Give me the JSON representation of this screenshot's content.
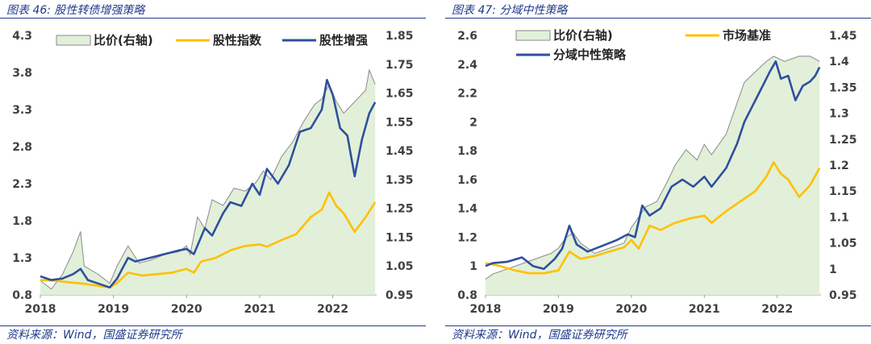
{
  "left": {
    "figure_title": "图表 46: 股性转债增强策略",
    "source": "资料来源：Wind，国盛证券研究所"
  },
  "right": {
    "figure_title": "图表 47: 分域中性策略",
    "source": "资料来源：Wind，国盛证券研究所"
  },
  "colors": {
    "ratio_fill": "#e2f0d9",
    "ratio_line": "#8a8a8a",
    "benchmark": "#ffc000",
    "strategy": "#2f4f9f",
    "frame": "#1f3a8a"
  },
  "chart_data": [
    {
      "type": "line",
      "title": "",
      "x_tick_labels": [
        "2018",
        "2019",
        "2020",
        "2021",
        "2022"
      ],
      "x_range": [
        2018.0,
        2022.6
      ],
      "left_axis": {
        "ylim": [
          0.8,
          4.3
        ],
        "ticks": [
          "0.8",
          "1.3",
          "1.8",
          "2.3",
          "2.8",
          "3.3",
          "3.8",
          "4.3"
        ]
      },
      "right_axis": {
        "ylim": [
          0.95,
          1.85
        ],
        "ticks": [
          "0.95",
          "1.05",
          "1.15",
          "1.25",
          "1.35",
          "1.45",
          "1.55",
          "1.65",
          "1.75",
          "1.85"
        ]
      },
      "legend_position": "top",
      "series": [
        {
          "name": "比价(右轴)",
          "kind": "area",
          "axis": "right",
          "color": "#8a8a8a",
          "points": [
            [
              2018.0,
              1.0
            ],
            [
              2018.15,
              0.97
            ],
            [
              2018.3,
              1.02
            ],
            [
              2018.45,
              1.1
            ],
            [
              2018.55,
              1.17
            ],
            [
              2018.6,
              1.05
            ],
            [
              2018.8,
              1.02
            ],
            [
              2018.95,
              0.99
            ],
            [
              2019.05,
              1.05
            ],
            [
              2019.2,
              1.12
            ],
            [
              2019.35,
              1.06
            ],
            [
              2019.5,
              1.07
            ],
            [
              2019.7,
              1.09
            ],
            [
              2019.9,
              1.1
            ],
            [
              2020.0,
              1.12
            ],
            [
              2020.05,
              1.09
            ],
            [
              2020.15,
              1.22
            ],
            [
              2020.25,
              1.18
            ],
            [
              2020.35,
              1.28
            ],
            [
              2020.5,
              1.26
            ],
            [
              2020.65,
              1.32
            ],
            [
              2020.8,
              1.31
            ],
            [
              2020.95,
              1.34
            ],
            [
              2021.05,
              1.38
            ],
            [
              2021.15,
              1.35
            ],
            [
              2021.3,
              1.43
            ],
            [
              2021.45,
              1.48
            ],
            [
              2021.6,
              1.55
            ],
            [
              2021.75,
              1.61
            ],
            [
              2021.85,
              1.63
            ],
            [
              2021.95,
              1.68
            ],
            [
              2022.05,
              1.62
            ],
            [
              2022.15,
              1.58
            ],
            [
              2022.3,
              1.62
            ],
            [
              2022.45,
              1.66
            ],
            [
              2022.5,
              1.73
            ],
            [
              2022.58,
              1.68
            ]
          ]
        },
        {
          "name": "股性指数",
          "kind": "line",
          "axis": "left",
          "color": "#ffc000",
          "points": [
            [
              2018.0,
              1.0
            ],
            [
              2018.2,
              0.99
            ],
            [
              2018.4,
              0.97
            ],
            [
              2018.6,
              0.95
            ],
            [
              2018.8,
              0.92
            ],
            [
              2018.95,
              0.9
            ],
            [
              2019.05,
              0.96
            ],
            [
              2019.2,
              1.1
            ],
            [
              2019.4,
              1.06
            ],
            [
              2019.6,
              1.08
            ],
            [
              2019.8,
              1.1
            ],
            [
              2020.0,
              1.15
            ],
            [
              2020.1,
              1.1
            ],
            [
              2020.2,
              1.25
            ],
            [
              2020.4,
              1.3
            ],
            [
              2020.6,
              1.4
            ],
            [
              2020.8,
              1.46
            ],
            [
              2021.0,
              1.48
            ],
            [
              2021.1,
              1.45
            ],
            [
              2021.3,
              1.54
            ],
            [
              2021.5,
              1.62
            ],
            [
              2021.7,
              1.85
            ],
            [
              2021.85,
              1.95
            ],
            [
              2021.95,
              2.18
            ],
            [
              2022.05,
              2.0
            ],
            [
              2022.15,
              1.9
            ],
            [
              2022.3,
              1.65
            ],
            [
              2022.45,
              1.85
            ],
            [
              2022.58,
              2.05
            ]
          ]
        },
        {
          "name": "股性增强",
          "kind": "line",
          "axis": "left",
          "color": "#2f4f9f",
          "points": [
            [
              2018.0,
              1.05
            ],
            [
              2018.15,
              1.0
            ],
            [
              2018.3,
              1.02
            ],
            [
              2018.45,
              1.08
            ],
            [
              2018.55,
              1.15
            ],
            [
              2018.65,
              1.0
            ],
            [
              2018.8,
              0.95
            ],
            [
              2018.95,
              0.9
            ],
            [
              2019.05,
              1.02
            ],
            [
              2019.2,
              1.3
            ],
            [
              2019.3,
              1.25
            ],
            [
              2019.5,
              1.3
            ],
            [
              2019.7,
              1.35
            ],
            [
              2019.9,
              1.4
            ],
            [
              2020.0,
              1.42
            ],
            [
              2020.1,
              1.35
            ],
            [
              2020.25,
              1.7
            ],
            [
              2020.35,
              1.6
            ],
            [
              2020.5,
              1.9
            ],
            [
              2020.6,
              2.05
            ],
            [
              2020.75,
              2.0
            ],
            [
              2020.9,
              2.3
            ],
            [
              2021.0,
              2.15
            ],
            [
              2021.1,
              2.5
            ],
            [
              2021.25,
              2.3
            ],
            [
              2021.4,
              2.55
            ],
            [
              2021.55,
              3.0
            ],
            [
              2021.7,
              3.05
            ],
            [
              2021.85,
              3.3
            ],
            [
              2021.92,
              3.7
            ],
            [
              2022.0,
              3.5
            ],
            [
              2022.1,
              3.05
            ],
            [
              2022.2,
              2.95
            ],
            [
              2022.3,
              2.4
            ],
            [
              2022.4,
              2.9
            ],
            [
              2022.5,
              3.25
            ],
            [
              2022.58,
              3.4
            ]
          ]
        }
      ]
    },
    {
      "type": "line",
      "title": "",
      "x_tick_labels": [
        "2018",
        "2019",
        "2020",
        "2021",
        "2022"
      ],
      "x_range": [
        2018.0,
        2022.6
      ],
      "left_axis": {
        "ylim": [
          0.8,
          2.6
        ],
        "ticks": [
          "0.8",
          "1",
          "1.2",
          "1.4",
          "1.6",
          "1.8",
          "2",
          "2.2",
          "2.4",
          "2.6"
        ]
      },
      "right_axis": {
        "ylim": [
          0.95,
          1.45
        ],
        "ticks": [
          "0.95",
          "1",
          "1.05",
          "1.1",
          "1.15",
          "1.2",
          "1.25",
          "1.3",
          "1.35",
          "1.4",
          "1.45"
        ]
      },
      "legend_position": "top",
      "series": [
        {
          "name": "比价(右轴)",
          "kind": "area",
          "axis": "right",
          "color": "#8a8a8a",
          "points": [
            [
              2018.0,
              0.98
            ],
            [
              2018.1,
              0.99
            ],
            [
              2018.3,
              1.0
            ],
            [
              2018.5,
              1.01
            ],
            [
              2018.7,
              1.02
            ],
            [
              2018.9,
              1.03
            ],
            [
              2019.0,
              1.04
            ],
            [
              2019.1,
              1.06
            ],
            [
              2019.2,
              1.07
            ],
            [
              2019.3,
              1.05
            ],
            [
              2019.5,
              1.03
            ],
            [
              2019.7,
              1.04
            ],
            [
              2019.9,
              1.05
            ],
            [
              2020.0,
              1.08
            ],
            [
              2020.1,
              1.1
            ],
            [
              2020.2,
              1.12
            ],
            [
              2020.35,
              1.13
            ],
            [
              2020.5,
              1.17
            ],
            [
              2020.6,
              1.2
            ],
            [
              2020.75,
              1.23
            ],
            [
              2020.9,
              1.21
            ],
            [
              2021.0,
              1.24
            ],
            [
              2021.1,
              1.22
            ],
            [
              2021.3,
              1.26
            ],
            [
              2021.45,
              1.32
            ],
            [
              2021.55,
              1.36
            ],
            [
              2021.7,
              1.38
            ],
            [
              2021.85,
              1.4
            ],
            [
              2021.95,
              1.41
            ],
            [
              2022.1,
              1.4
            ],
            [
              2022.3,
              1.41
            ],
            [
              2022.45,
              1.41
            ],
            [
              2022.58,
              1.4
            ]
          ]
        },
        {
          "name": "市场基准",
          "kind": "line",
          "axis": "left",
          "color": "#ffc000",
          "points": [
            [
              2018.0,
              1.02
            ],
            [
              2018.2,
              1.0
            ],
            [
              2018.4,
              0.97
            ],
            [
              2018.6,
              0.95
            ],
            [
              2018.8,
              0.95
            ],
            [
              2019.0,
              0.97
            ],
            [
              2019.15,
              1.1
            ],
            [
              2019.3,
              1.05
            ],
            [
              2019.5,
              1.07
            ],
            [
              2019.7,
              1.1
            ],
            [
              2019.9,
              1.13
            ],
            [
              2020.0,
              1.18
            ],
            [
              2020.1,
              1.12
            ],
            [
              2020.25,
              1.28
            ],
            [
              2020.4,
              1.25
            ],
            [
              2020.6,
              1.3
            ],
            [
              2020.8,
              1.33
            ],
            [
              2021.0,
              1.35
            ],
            [
              2021.1,
              1.3
            ],
            [
              2021.3,
              1.38
            ],
            [
              2021.5,
              1.45
            ],
            [
              2021.7,
              1.52
            ],
            [
              2021.85,
              1.62
            ],
            [
              2021.95,
              1.72
            ],
            [
              2022.05,
              1.64
            ],
            [
              2022.15,
              1.6
            ],
            [
              2022.3,
              1.48
            ],
            [
              2022.45,
              1.56
            ],
            [
              2022.58,
              1.68
            ]
          ]
        },
        {
          "name": "分域中性策略",
          "kind": "line",
          "axis": "left",
          "color": "#2f4f9f",
          "points": [
            [
              2018.0,
              1.0
            ],
            [
              2018.1,
              1.02
            ],
            [
              2018.3,
              1.03
            ],
            [
              2018.5,
              1.06
            ],
            [
              2018.65,
              1.0
            ],
            [
              2018.8,
              0.98
            ],
            [
              2018.95,
              1.05
            ],
            [
              2019.05,
              1.12
            ],
            [
              2019.15,
              1.28
            ],
            [
              2019.25,
              1.15
            ],
            [
              2019.4,
              1.1
            ],
            [
              2019.6,
              1.14
            ],
            [
              2019.8,
              1.18
            ],
            [
              2019.95,
              1.22
            ],
            [
              2020.05,
              1.2
            ],
            [
              2020.15,
              1.42
            ],
            [
              2020.25,
              1.35
            ],
            [
              2020.4,
              1.4
            ],
            [
              2020.55,
              1.55
            ],
            [
              2020.7,
              1.6
            ],
            [
              2020.85,
              1.55
            ],
            [
              2021.0,
              1.62
            ],
            [
              2021.1,
              1.55
            ],
            [
              2021.3,
              1.68
            ],
            [
              2021.45,
              1.85
            ],
            [
              2021.55,
              2.0
            ],
            [
              2021.7,
              2.15
            ],
            [
              2021.8,
              2.25
            ],
            [
              2021.9,
              2.35
            ],
            [
              2021.98,
              2.42
            ],
            [
              2022.05,
              2.3
            ],
            [
              2022.15,
              2.32
            ],
            [
              2022.25,
              2.15
            ],
            [
              2022.35,
              2.25
            ],
            [
              2022.45,
              2.28
            ],
            [
              2022.52,
              2.32
            ],
            [
              2022.58,
              2.38
            ]
          ]
        }
      ]
    }
  ]
}
